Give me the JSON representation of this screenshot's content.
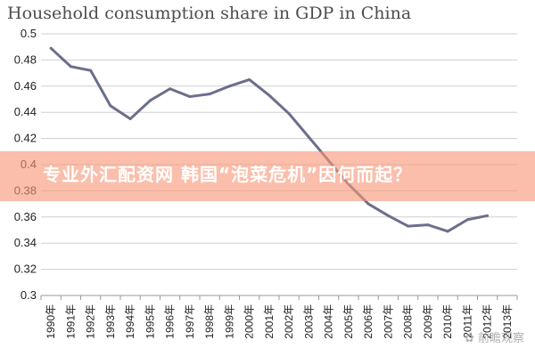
{
  "chart_data": {
    "type": "line",
    "title": "Household consumption share in GDP in China",
    "x": [
      "1990年",
      "1991年",
      "1992年",
      "1993年",
      "1994年",
      "1995年",
      "1996年",
      "1997年",
      "1998年",
      "1999年",
      "2000年",
      "2001年",
      "2002年",
      "2003年",
      "2004年",
      "2005年",
      "2006年",
      "2007年",
      "2008年",
      "2009年",
      "2010年",
      "2011年",
      "2012年",
      "2013年"
    ],
    "series": [
      {
        "values": [
          0.489,
          0.475,
          0.472,
          0.445,
          0.435,
          0.449,
          0.458,
          0.452,
          0.454,
          0.46,
          0.465,
          0.453,
          0.439,
          0.421,
          0.403,
          0.385,
          0.37,
          0.361,
          0.353,
          0.354,
          0.349,
          0.358,
          0.361,
          null
        ]
      }
    ],
    "yticks": [
      "0.5",
      "0.48",
      "0.46",
      "0.44",
      "0.42",
      "0.4",
      "0.38",
      "0.36",
      "0.34",
      "0.32",
      "0.3"
    ],
    "ylim": [
      0.3,
      0.5
    ],
    "grid": "horizontal",
    "line_color": "#6b6f8c"
  },
  "banner": {
    "text": "专业外汇配资网 韩国“泡菜危机”因何而起？",
    "color": "#f79678"
  },
  "watermark": {
    "text": "前瞻观察"
  }
}
